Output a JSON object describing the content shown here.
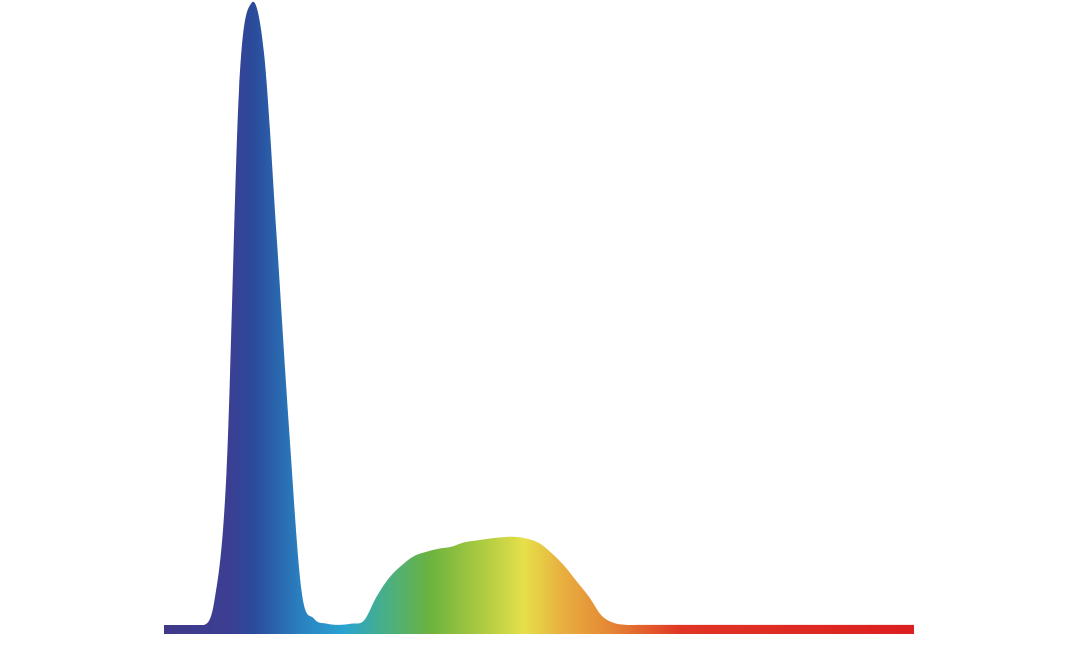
{
  "chart_data": {
    "type": "area",
    "title": "",
    "xlabel": "",
    "ylabel": "",
    "axes_visible": false,
    "grid": false,
    "legend": "none",
    "fill": "spectral-gradient",
    "gradient_colors": [
      "#40398a",
      "#3b3f93",
      "#2a4b9b",
      "#2a7fbf",
      "#29a3d1",
      "#45ae8c",
      "#6cb33f",
      "#a8c940",
      "#e6e04a",
      "#e8b040",
      "#e58a35",
      "#e03524",
      "#dc1f1f"
    ],
    "baseline_value": 0.005,
    "ylim": [
      0,
      1
    ],
    "values": [
      0,
      0,
      0,
      0.002,
      0.04,
      0.25,
      0.86,
      1.0,
      0.92,
      0.63,
      0.32,
      0.06,
      0.015,
      0.007,
      0.005,
      0.007,
      0.012,
      0.05,
      0.08,
      0.1,
      0.115,
      0.122,
      0.127,
      0.13,
      0.137,
      0.14,
      0.143,
      0.145,
      0.146,
      0.143,
      0.136,
      0.12,
      0.1,
      0.075,
      0.05,
      0.02,
      0.008,
      0.005,
      0.005,
      0.005,
      0.005,
      0.005,
      0.005,
      0.005,
      0.005,
      0.005,
      0.005,
      0.005,
      0.005,
      0.005,
      0.005,
      0.005,
      0.005,
      0.005,
      0.005,
      0.005,
      0.005,
      0.005,
      0.005,
      0.005,
      0.005
    ]
  }
}
